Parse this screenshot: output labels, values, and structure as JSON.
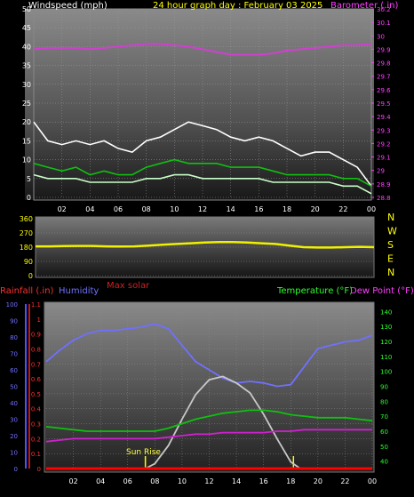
{
  "chart_data": [
    {
      "type": "line",
      "title": "24 hour graph day : February 03 2025",
      "left_axis_label": "Windspeed (mph)",
      "right_axis_label": "Barometer (.in)",
      "x_tick_labels": [
        "02",
        "04",
        "06",
        "08",
        "10",
        "12",
        "14",
        "16",
        "18",
        "20",
        "22",
        "00"
      ],
      "left_ticks": [
        0,
        5,
        10,
        15,
        20,
        25,
        30,
        35,
        40,
        45,
        50
      ],
      "right_ticks": [
        28.8,
        28.9,
        29,
        29.1,
        29.2,
        29.3,
        29.4,
        29.5,
        29.6,
        29.7,
        29.8,
        29.9,
        30,
        30.1,
        30.2
      ],
      "ylim_left": [
        0,
        50
      ],
      "ylim_right": [
        28.8,
        30.2
      ],
      "series": [
        {
          "axis": "right",
          "color": "#d040d0",
          "x": [
            0,
            1,
            2,
            3,
            4,
            5,
            6,
            7,
            8,
            9,
            10,
            11,
            12,
            13,
            14,
            15,
            16,
            17,
            18,
            19,
            20,
            21,
            22,
            23,
            24
          ],
          "values": [
            29.9,
            29.91,
            29.91,
            29.91,
            29.9,
            29.91,
            29.92,
            29.93,
            29.94,
            29.94,
            29.93,
            29.92,
            29.9,
            29.88,
            29.86,
            29.86,
            29.86,
            29.87,
            29.89,
            29.9,
            29.91,
            29.92,
            29.93,
            29.93,
            29.94
          ]
        },
        {
          "axis": "left",
          "color": "#ffffff",
          "x": [
            0,
            1,
            2,
            3,
            4,
            5,
            6,
            7,
            8,
            9,
            10,
            11,
            12,
            13,
            14,
            15,
            16,
            17,
            18,
            19,
            20,
            21,
            22,
            23,
            24
          ],
          "values": [
            20,
            15,
            14,
            15,
            14,
            15,
            13,
            12,
            15,
            16,
            18,
            20,
            19,
            18,
            16,
            15,
            16,
            15,
            13,
            11,
            12,
            12,
            10,
            8,
            3
          ]
        },
        {
          "axis": "left",
          "color": "#10c010",
          "x": [
            0,
            1,
            2,
            3,
            4,
            5,
            6,
            7,
            8,
            9,
            10,
            11,
            12,
            13,
            14,
            15,
            16,
            17,
            18,
            19,
            20,
            21,
            22,
            23,
            24
          ],
          "values": [
            9,
            8,
            7,
            8,
            6,
            7,
            6,
            6,
            8,
            9,
            10,
            9,
            9,
            9,
            8,
            8,
            8,
            7,
            6,
            6,
            6,
            6,
            5,
            5,
            3
          ]
        },
        {
          "axis": "left",
          "color": "#c8ffc8",
          "x": [
            0,
            1,
            2,
            3,
            4,
            5,
            6,
            7,
            8,
            9,
            10,
            11,
            12,
            13,
            14,
            15,
            16,
            17,
            18,
            19,
            20,
            21,
            22,
            23,
            24
          ],
          "values": [
            6,
            5,
            5,
            5,
            4,
            4,
            4,
            4,
            5,
            5,
            6,
            6,
            5,
            5,
            5,
            5,
            5,
            4,
            4,
            4,
            4,
            4,
            3,
            3,
            1
          ]
        }
      ]
    },
    {
      "type": "line",
      "right_letters": [
        "N",
        "W",
        "S",
        "E",
        "N"
      ],
      "left_ticks": [
        0,
        90,
        180,
        270,
        360
      ],
      "ylim": [
        0,
        360
      ],
      "series": [
        {
          "color": "#f0f000",
          "x": [
            0,
            1,
            2,
            3,
            4,
            5,
            6,
            7,
            8,
            9,
            10,
            11,
            12,
            13,
            14,
            15,
            16,
            17,
            18,
            19,
            20,
            21,
            22,
            23,
            24
          ],
          "values": [
            185,
            185,
            187,
            188,
            188,
            185,
            184,
            185,
            190,
            195,
            200,
            205,
            210,
            212,
            212,
            210,
            205,
            200,
            190,
            180,
            178,
            178,
            180,
            182,
            180
          ]
        }
      ]
    },
    {
      "type": "line",
      "labels": {
        "rainfall": "Rainfall (.in)",
        "humidity": "Humidity",
        "max_solar": "Max solar",
        "temperature": "Temperature (°F)",
        "dew_point": "Dew Point (°F)",
        "sun_rise": "Sun Rise"
      },
      "x_tick_labels": [
        "02",
        "04",
        "06",
        "08",
        "10",
        "12",
        "14",
        "16",
        "18",
        "20",
        "22",
        "00"
      ],
      "humidity_ticks": [
        0,
        10,
        20,
        30,
        40,
        50,
        60,
        70,
        80,
        90,
        100
      ],
      "rain_ticks": [
        0,
        0.1,
        0.2,
        0.3,
        0.4,
        0.5,
        0.6,
        0.7,
        0.8,
        0.9,
        1,
        1.1
      ],
      "temp_ticks": [
        40,
        50,
        60,
        70,
        80,
        90,
        100,
        110,
        120,
        130,
        140
      ],
      "ylim_humidity": [
        0,
        100
      ],
      "ylim_rain": [
        0,
        1.1
      ],
      "ylim_temp": [
        35,
        145
      ],
      "sunrise_hour": 7.3,
      "sunset_hour": 18.2,
      "series": [
        {
          "name": "Humidity",
          "axis": "humidity",
          "color": "#7070ff",
          "x": [
            0,
            1,
            2,
            3,
            4,
            5,
            6,
            7,
            8,
            9,
            10,
            11,
            12,
            13,
            14,
            15,
            16,
            17,
            18,
            19,
            20,
            21,
            22,
            23,
            24
          ],
          "values": [
            65,
            72,
            78,
            82,
            84,
            84,
            85,
            86,
            88,
            85,
            75,
            65,
            60,
            55,
            52,
            53,
            52,
            50,
            51,
            62,
            73,
            75,
            77,
            78,
            81
          ]
        },
        {
          "name": "Max solar",
          "axis": "humidity",
          "color": "#c8c8c8",
          "x": [
            7.3,
            8,
            9,
            10,
            11,
            12,
            13,
            14,
            15,
            16,
            17,
            18,
            18.7
          ],
          "values": [
            0,
            3,
            14,
            30,
            45,
            54,
            56,
            52,
            46,
            33,
            18,
            4,
            0
          ]
        },
        {
          "name": "Temperature (°F)",
          "axis": "temp",
          "color": "#10c010",
          "x": [
            0,
            1,
            2,
            3,
            4,
            5,
            6,
            7,
            8,
            9,
            10,
            11,
            12,
            13,
            14,
            15,
            16,
            17,
            18,
            19,
            20,
            21,
            22,
            23,
            24
          ],
          "values": [
            63,
            62,
            61,
            60,
            60,
            60,
            60,
            60,
            60,
            62,
            65,
            68,
            70,
            72,
            73,
            74,
            74,
            73,
            71,
            70,
            69,
            69,
            69,
            68,
            67
          ]
        },
        {
          "name": "Dew Point (°F)",
          "axis": "temp",
          "color": "#d020d0",
          "x": [
            0,
            1,
            2,
            3,
            4,
            5,
            6,
            7,
            8,
            9,
            10,
            11,
            12,
            13,
            14,
            15,
            16,
            17,
            18,
            19,
            20,
            21,
            22,
            23,
            24
          ],
          "values": [
            53,
            54,
            55,
            55,
            55,
            55,
            55,
            55,
            55,
            56,
            57,
            58,
            58,
            59,
            59,
            59,
            59,
            60,
            60,
            61,
            61,
            61,
            61,
            61,
            61
          ]
        },
        {
          "name": "Rainfall (.in)",
          "axis": "rain",
          "color": "#ff0000",
          "x": [
            0,
            24
          ],
          "values": [
            0,
            0
          ]
        }
      ]
    }
  ]
}
